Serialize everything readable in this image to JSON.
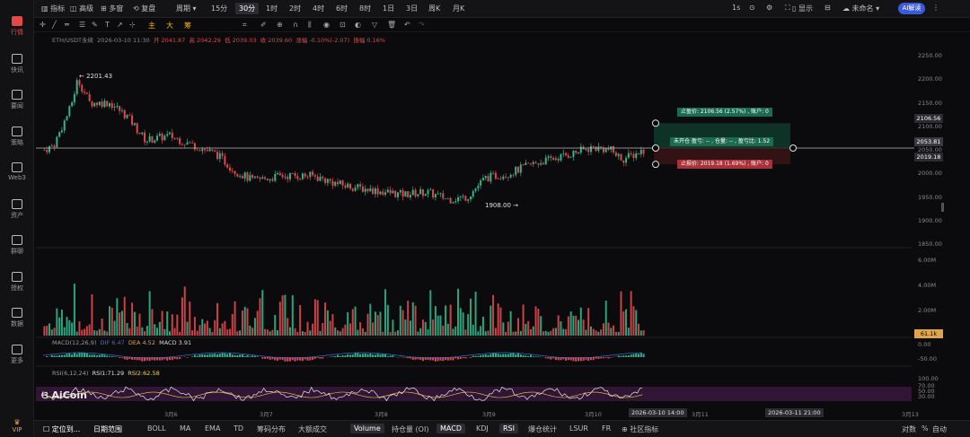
{
  "sidebar": {
    "items": [
      {
        "label": "行情",
        "icon": "bar-chart-icon"
      },
      {
        "label": "快讯",
        "icon": "news-icon"
      },
      {
        "label": "要闻",
        "icon": "article-icon"
      },
      {
        "label": "策略",
        "icon": "robot-icon"
      },
      {
        "label": "Web3",
        "icon": "web3-icon"
      },
      {
        "label": "资产",
        "icon": "wallet-icon"
      },
      {
        "label": "群聊",
        "icon": "chat-icon"
      },
      {
        "label": "授权",
        "icon": "key-icon"
      },
      {
        "label": "数据",
        "icon": "data-icon"
      },
      {
        "label": "更多",
        "icon": "grid-icon"
      }
    ],
    "bottom_label": "VIP"
  },
  "toolbar": {
    "items": [
      "指标",
      "高级",
      "多窗",
      "复盘",
      "周期"
    ],
    "periods": [
      "15分",
      "30分",
      "1时",
      "2时",
      "4时",
      "6时",
      "8时",
      "1日",
      "3日",
      "周K",
      "月K"
    ],
    "selected_period": "30分",
    "right_items": [
      "1s",
      "显示",
      "未命名"
    ],
    "ai_label": "AI解读"
  },
  "tools": {
    "labels": [
      "主",
      "大",
      "筹"
    ]
  },
  "info": {
    "symbol": "ETH/USDT永续",
    "time": "2026-03-10 11:30",
    "open": "开 2041.87",
    "high": "高 2042.29",
    "low": "低 2039.03",
    "close": "收 2039.60",
    "change": "涨幅 -0.10%(-2.07)",
    "amplitude": "振幅 0.16%"
  },
  "macd_info": {
    "label": "MACD(12,26,9)",
    "dif": "DIF 6.47",
    "dea": "DEA 4.52",
    "macd": "MACD 3.91"
  },
  "rsi_info": {
    "label": "RSI(6,12,24)",
    "rsi1": "RSI1:71.29",
    "rsi2": "RSI2:62.58"
  },
  "annotations": {
    "high": "2201.43",
    "low": "1908.00"
  },
  "orders": {
    "take_profit": "止盈价: 2106.56 (2.57%) , 账户: 0",
    "position": "未开仓 盈亏: -- , 仓量: -- , 盈亏比: 1.52",
    "stop_loss": "止损价: 2019.18 (1.69%) , 账户: 0"
  },
  "price_tags": {
    "tp": "2106.56",
    "current": "2053.81",
    "sl": "2019.18",
    "volume": "61.1k"
  },
  "axis": {
    "price_ticks": [
      "2250.00",
      "2200.00",
      "2150.00",
      "2100.00",
      "2050.00",
      "2000.00",
      "1950.00",
      "1900.00",
      "1850.00"
    ],
    "volume_ticks": [
      "6.00M",
      "4.00M",
      "2.00M"
    ],
    "macd_ticks": [
      "0.00",
      "-50.00"
    ],
    "rsi_ticks": [
      "100.00",
      "70.00",
      "50.00",
      "30.00"
    ]
  },
  "dates": {
    "labels": [
      "3月6",
      "3月7",
      "3月8",
      "3月9",
      "3月10",
      "3月11",
      "3月13"
    ],
    "tag_left": "2026-03-10 14:00",
    "tag_right": "2026-03-11 21:00"
  },
  "watermark": "AiCoin",
  "bottom": {
    "left": [
      "定位到...",
      "日期范围"
    ],
    "indicators": [
      "BOLL",
      "MA",
      "EMA",
      "TD",
      "筹码分布",
      "大额成交",
      "Volume",
      "持仓量 (OI)",
      "MACD",
      "KDJ",
      "RSI",
      "爆仓统计",
      "LSUR",
      "FR",
      "社区指标"
    ],
    "selected": [
      "Volume",
      "MACD",
      "RSI"
    ],
    "right": [
      "对数",
      "%",
      "自动"
    ]
  },
  "colors": {
    "up": "#2fb58b",
    "down": "#e0484d",
    "bg": "#0b0b0d",
    "accent": "#e54848"
  },
  "chart_data": {
    "type": "candlestick",
    "ylim": [
      1850,
      2250
    ],
    "high_marker": 2201.43,
    "low_marker": 1908.0,
    "current_price": 2053.81,
    "take_profit": 2106.56,
    "stop_loss": 2019.18,
    "x_labels": [
      "3月6",
      "3月7",
      "3月8",
      "3月9",
      "3月10",
      "3月11",
      "3月13"
    ]
  }
}
